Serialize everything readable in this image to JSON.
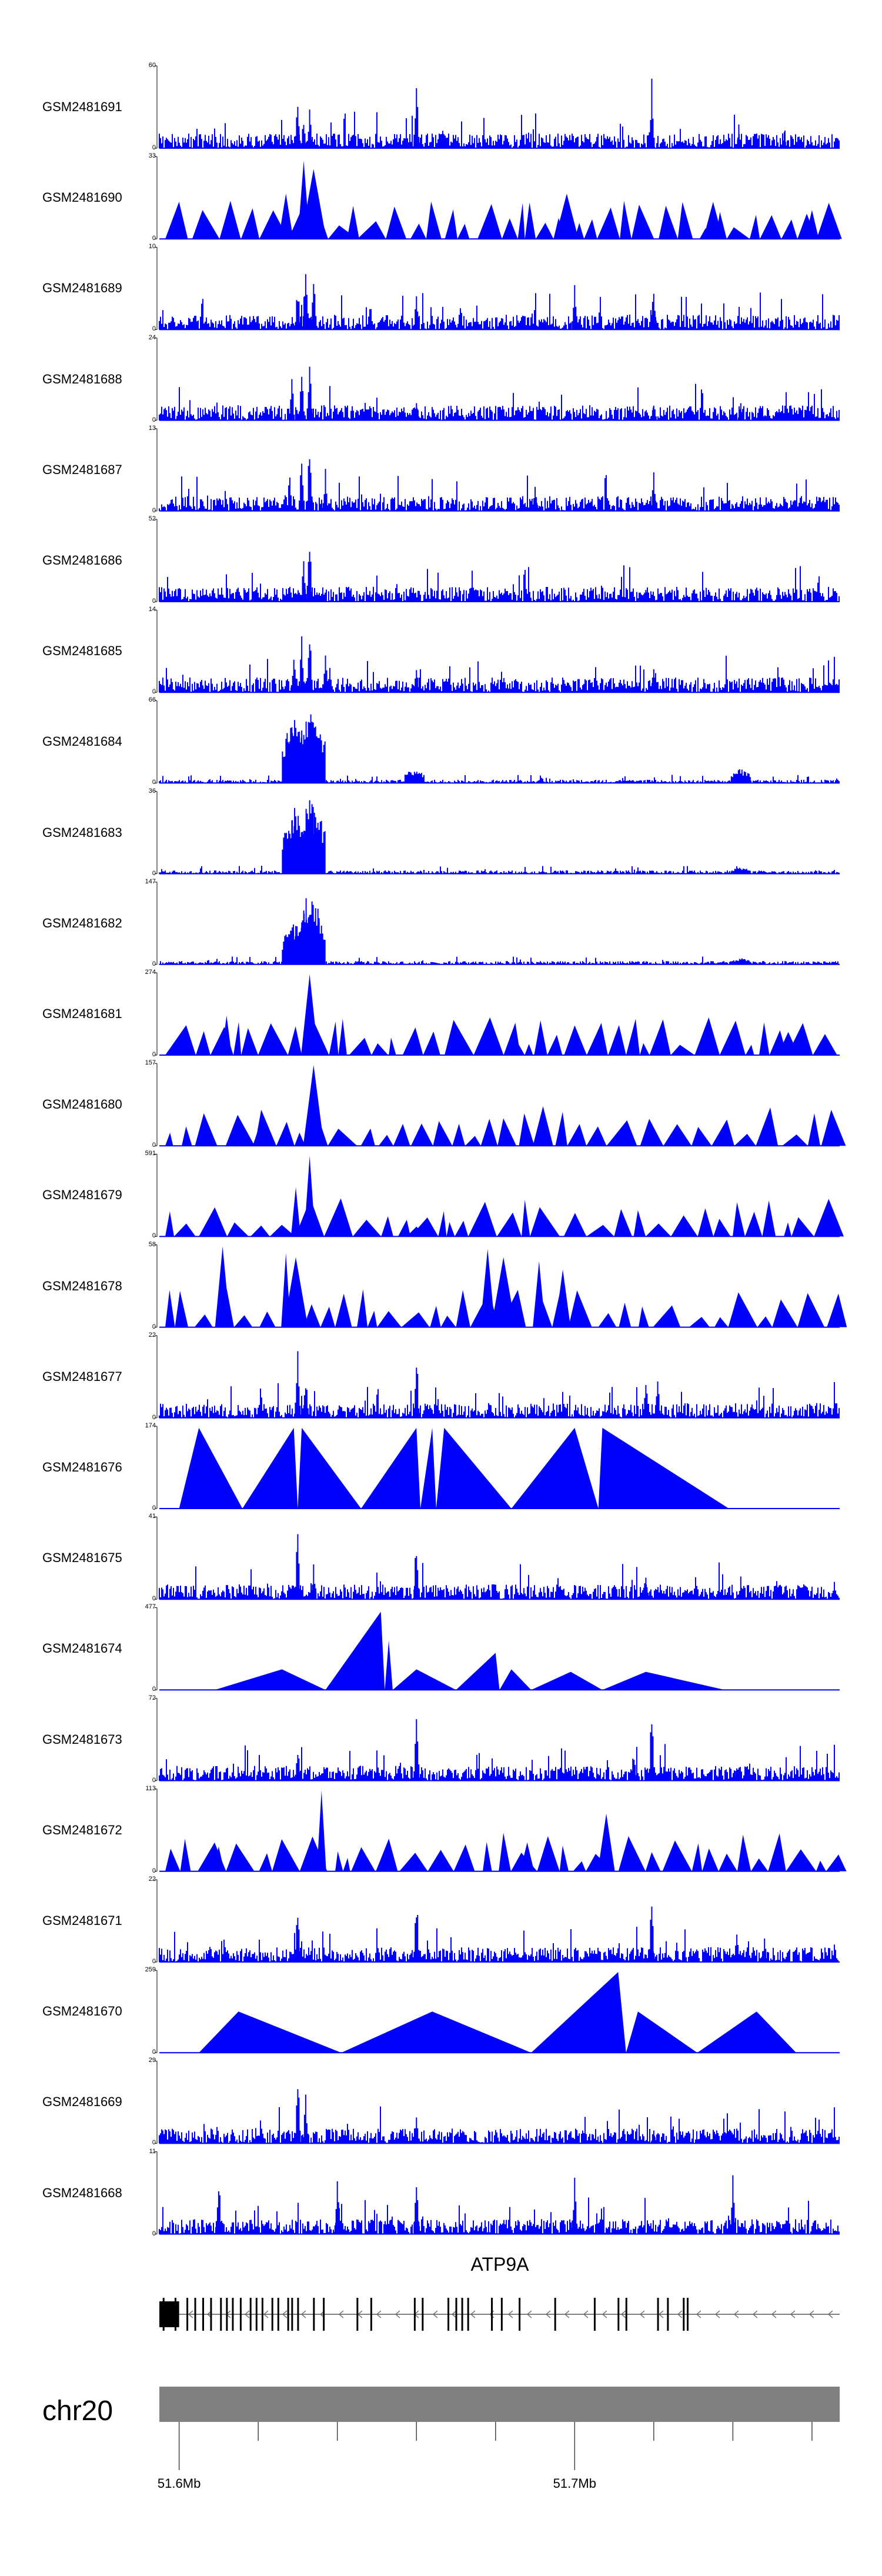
{
  "chart_data": {
    "type": "area",
    "title": "",
    "xlabel": "",
    "ylabel": "",
    "chromosome": "chr20",
    "x_range_bp": [
      51595000,
      51767000
    ],
    "x_ticks_bp": [
      51600000,
      51620000,
      51640000,
      51660000,
      51680000,
      51700000,
      51720000,
      51740000,
      51760000
    ],
    "x_tick_labels": [
      {
        "bp": 51600000,
        "label": "51.6Mb"
      },
      {
        "bp": 51700000,
        "label": "51.7Mb"
      }
    ],
    "series_color": "#0000ff",
    "series": [
      {
        "name": "GSM2481691",
        "ymax": 60,
        "ymin": 0,
        "style": "dense",
        "peaks": [
          [
            51630000,
            0.7
          ],
          [
            51631500,
            0.4
          ],
          [
            51633000,
            0.55
          ],
          [
            51660000,
            0.95
          ],
          [
            51719500,
            0.98
          ],
          [
            51741500,
            0.3
          ],
          [
            51753000,
            0.2
          ]
        ]
      },
      {
        "name": "GSM2481690",
        "ymax": 33,
        "ymin": 0,
        "style": "sparse",
        "peaks": [
          [
            51627000,
            0.55
          ],
          [
            51631500,
            0.95
          ],
          [
            51634000,
            0.85
          ],
          [
            51644000,
            0.4
          ],
          [
            51698000,
            0.55
          ],
          [
            51735000,
            0.45
          ],
          [
            51760000,
            0.35
          ]
        ]
      },
      {
        "name": "GSM2481689",
        "ymax": 10,
        "ymin": 0,
        "style": "dense",
        "peaks": [
          [
            51632000,
            1.0
          ],
          [
            51634000,
            0.8
          ],
          [
            51630000,
            0.6
          ],
          [
            51660000,
            0.5
          ],
          [
            51700000,
            0.55
          ],
          [
            51720000,
            0.6
          ]
        ]
      },
      {
        "name": "GSM2481688",
        "ymax": 24,
        "ymin": 0,
        "style": "dense",
        "peaks": [
          [
            51633000,
            1.0
          ],
          [
            51628500,
            0.55
          ],
          [
            51631000,
            0.6
          ],
          [
            51660000,
            0.25
          ],
          [
            51720000,
            0.3
          ],
          [
            51742000,
            0.25
          ]
        ]
      },
      {
        "name": "GSM2481687",
        "ymax": 13,
        "ymin": 0,
        "style": "dense",
        "peaks": [
          [
            51633000,
            1.0
          ],
          [
            51631000,
            0.85
          ],
          [
            51628000,
            0.55
          ],
          [
            51637000,
            0.6
          ],
          [
            51690000,
            0.45
          ],
          [
            51720000,
            0.5
          ]
        ]
      },
      {
        "name": "GSM2481686",
        "ymax": 52,
        "ymin": 0,
        "style": "dense",
        "peaks": [
          [
            51633000,
            1.0
          ],
          [
            51631500,
            0.55
          ],
          [
            51628000,
            0.3
          ],
          [
            51606000,
            0.18
          ],
          [
            51718000,
            0.2
          ],
          [
            51741000,
            0.12
          ]
        ]
      },
      {
        "name": "GSM2481685",
        "ymax": 14,
        "ymin": 0,
        "style": "dense",
        "peaks": [
          [
            51633000,
            1.0
          ],
          [
            51629000,
            0.6
          ],
          [
            51631000,
            0.75
          ],
          [
            51637000,
            0.5
          ],
          [
            51660000,
            0.35
          ],
          [
            51720000,
            0.4
          ]
        ]
      },
      {
        "name": "GSM2481684",
        "ymax": 66,
        "ymin": 0,
        "style": "cluster",
        "peaks": [
          [
            51628500,
            0.8
          ],
          [
            51629500,
            0.85
          ],
          [
            51631000,
            0.75
          ],
          [
            51633000,
            0.92
          ],
          [
            51634500,
            0.9
          ],
          [
            51659500,
            0.18
          ],
          [
            51742000,
            0.18
          ]
        ]
      },
      {
        "name": "GSM2481683",
        "ymax": 36,
        "ymin": 0,
        "style": "cluster",
        "peaks": [
          [
            51628500,
            0.7
          ],
          [
            51629500,
            0.85
          ],
          [
            51631000,
            0.6
          ],
          [
            51633000,
            0.95
          ],
          [
            51634500,
            0.85
          ],
          [
            51742000,
            0.08
          ]
        ]
      },
      {
        "name": "GSM2481682",
        "ymax": 147,
        "ymin": 0,
        "style": "cluster",
        "peaks": [
          [
            51628500,
            0.5
          ],
          [
            51629500,
            0.55
          ],
          [
            51631000,
            0.7
          ],
          [
            51633000,
            0.95
          ],
          [
            51634500,
            0.8
          ],
          [
            51742000,
            0.08
          ]
        ]
      },
      {
        "name": "GSM2481681",
        "ymax": 274,
        "ymin": 0,
        "style": "sparse",
        "peaks": [
          [
            51612000,
            0.48
          ],
          [
            51633000,
            0.98
          ],
          [
            51685000,
            0.2
          ],
          [
            51754000,
            0.28
          ]
        ]
      },
      {
        "name": "GSM2481680",
        "ymax": 157,
        "ymin": 0,
        "style": "sparse",
        "peaks": [
          [
            51634000,
            0.98
          ],
          [
            51692000,
            0.48
          ],
          [
            51620000,
            0.2
          ]
        ]
      },
      {
        "name": "GSM2481679",
        "ymax": 591,
        "ymin": 0,
        "style": "sparse",
        "peaks": [
          [
            51629500,
            0.6
          ],
          [
            51633000,
            0.98
          ],
          [
            51660000,
            0.12
          ]
        ]
      },
      {
        "name": "GSM2481678",
        "ymax": 58,
        "ymin": 0,
        "style": "sparse",
        "peaks": [
          [
            51611000,
            0.98
          ],
          [
            51627000,
            0.9
          ],
          [
            51629500,
            0.85
          ],
          [
            51678000,
            0.95
          ],
          [
            51682000,
            0.85
          ],
          [
            51691000,
            0.8
          ],
          [
            51697000,
            0.7
          ]
        ]
      },
      {
        "name": "GSM2481677",
        "ymax": 22,
        "ymin": 0,
        "style": "dense",
        "peaks": [
          [
            51630000,
            0.95
          ],
          [
            51632000,
            0.6
          ],
          [
            51660000,
            0.9
          ],
          [
            51718000,
            0.65
          ],
          [
            51721000,
            0.55
          ]
        ]
      },
      {
        "name": "GSM2481676",
        "ymax": 174,
        "ymin": 0,
        "style": "triangles",
        "triangles": [
          [
            51600000,
            51605000,
            51616000,
            0.98
          ],
          [
            51616000,
            51629000,
            51630000,
            0.98
          ],
          [
            51630000,
            51631000,
            51646000,
            0.98
          ],
          [
            51646000,
            51660000,
            51661000,
            0.98
          ],
          [
            51661000,
            51664000,
            51665000,
            0.98
          ],
          [
            51665000,
            51667000,
            51684000,
            0.98
          ],
          [
            51684000,
            51700000,
            51706000,
            0.98
          ],
          [
            51706000,
            51707000,
            51739000,
            0.98
          ]
        ]
      },
      {
        "name": "GSM2481675",
        "ymax": 41,
        "ymin": 0,
        "style": "dense",
        "peaks": [
          [
            51630000,
            0.98
          ],
          [
            51660000,
            0.9
          ],
          [
            51634000,
            0.5
          ],
          [
            51718000,
            0.4
          ],
          [
            51742000,
            0.3
          ]
        ]
      },
      {
        "name": "GSM2481674",
        "ymax": 477,
        "ymin": 0,
        "style": "triangles",
        "triangles": [
          [
            51609000,
            51626000,
            51637000,
            0.25
          ],
          [
            51637000,
            51651000,
            51652000,
            0.95
          ],
          [
            51652000,
            51653000,
            51654000,
            0.6
          ],
          [
            51654000,
            51660000,
            51670000,
            0.25
          ],
          [
            51670000,
            51680000,
            51681000,
            0.45
          ],
          [
            51681000,
            51684000,
            51689000,
            0.25
          ],
          [
            51689000,
            51699000,
            51707000,
            0.22
          ],
          [
            51707000,
            51718000,
            51738000,
            0.22
          ]
        ]
      },
      {
        "name": "GSM2481673",
        "ymax": 72,
        "ymin": 0,
        "style": "dense",
        "peaks": [
          [
            51660000,
            0.98
          ],
          [
            51630000,
            0.55
          ],
          [
            51715000,
            0.45
          ],
          [
            51719500,
            0.98
          ],
          [
            51741000,
            0.25
          ]
        ]
      },
      {
        "name": "GSM2481672",
        "ymax": 113,
        "ymin": 0,
        "style": "sparse",
        "peaks": [
          [
            51636000,
            0.98
          ],
          [
            51708000,
            0.7
          ],
          [
            51688000,
            0.35
          ],
          [
            51610000,
            0.3
          ]
        ]
      },
      {
        "name": "GSM2481671",
        "ymax": 22,
        "ymin": 0,
        "style": "dense",
        "peaks": [
          [
            51630000,
            0.75
          ],
          [
            51660000,
            0.98
          ],
          [
            51719500,
            0.92
          ],
          [
            51741000,
            0.45
          ],
          [
            51748000,
            0.4
          ]
        ]
      },
      {
        "name": "GSM2481670",
        "ymax": 259,
        "ymin": 0,
        "style": "triangles",
        "triangles": [
          [
            51605000,
            51615000,
            51641000,
            0.5
          ],
          [
            51641000,
            51664000,
            51689000,
            0.5
          ],
          [
            51689000,
            51711000,
            51713000,
            0.98
          ],
          [
            51713000,
            51716000,
            51731000,
            0.5
          ],
          [
            51731000,
            51746000,
            51756000,
            0.5
          ]
        ]
      },
      {
        "name": "GSM2481669",
        "ymax": 29,
        "ymin": 0,
        "style": "dense",
        "peaks": [
          [
            51630000,
            0.98
          ],
          [
            51632000,
            0.6
          ],
          [
            51660000,
            0.35
          ],
          [
            51720000,
            0.2
          ]
        ]
      },
      {
        "name": "GSM2481668",
        "ymax": 11,
        "ymin": 0,
        "style": "dense",
        "peaks": [
          [
            51610000,
            0.8
          ],
          [
            51640000,
            0.85
          ],
          [
            51660000,
            0.75
          ],
          [
            51700000,
            0.85
          ],
          [
            51740000,
            0.8
          ]
        ]
      }
    ],
    "gene_track": {
      "name": "ATP9A",
      "strand": "-",
      "start_bp": 51595000,
      "end_bp": 51767000,
      "exons_bp": [
        51596000,
        51599000,
        51602000,
        51604000,
        51606000,
        51608000,
        51610500,
        51612000,
        51613500,
        51615500,
        51618000,
        51619500,
        51621000,
        51623500,
        51625000,
        51627500,
        51628500,
        51630000,
        51634000,
        51636500,
        51645000,
        51648500,
        51659500,
        51661500,
        51668000,
        51670000,
        51671500,
        51673000,
        51679000,
        51681500,
        51686000,
        51695000,
        51705000,
        51711000,
        51713000,
        51721000,
        51723500,
        51727500,
        51728500
      ],
      "utr_block_bp": [
        51595000,
        51600000
      ]
    },
    "ideogram": {
      "chromosome": "chr20",
      "color": "#808080"
    }
  }
}
